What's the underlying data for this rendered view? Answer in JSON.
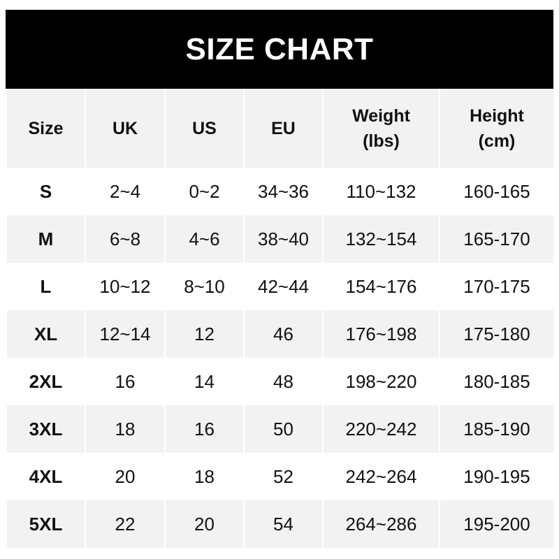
{
  "title": "SIZE CHART",
  "headers": [
    [
      "Size"
    ],
    [
      "UK"
    ],
    [
      "US"
    ],
    [
      "EU"
    ],
    [
      "Weight",
      "(lbs)"
    ],
    [
      "Height",
      "(cm)"
    ]
  ],
  "rows": [
    [
      "S",
      "2~4",
      "0~2",
      "34~36",
      "110~132",
      "160-165"
    ],
    [
      "M",
      "6~8",
      "4~6",
      "38~40",
      "132~154",
      "165-170"
    ],
    [
      "L",
      "10~12",
      "8~10",
      "42~44",
      "154~176",
      "170-175"
    ],
    [
      "XL",
      "12~14",
      "12",
      "46",
      "176~198",
      "175-180"
    ],
    [
      "2XL",
      "16",
      "14",
      "48",
      "198~220",
      "180-185"
    ],
    [
      "3XL",
      "18",
      "16",
      "50",
      "220~242",
      "185-190"
    ],
    [
      "4XL",
      "20",
      "18",
      "52",
      "242~264",
      "190-195"
    ],
    [
      "5XL",
      "22",
      "20",
      "54",
      "264~286",
      "195-200"
    ]
  ],
  "colors": {
    "title_bg": "#000000",
    "header_bg": "#f2f2f2",
    "stripe_bg": "#f2f2f2"
  }
}
